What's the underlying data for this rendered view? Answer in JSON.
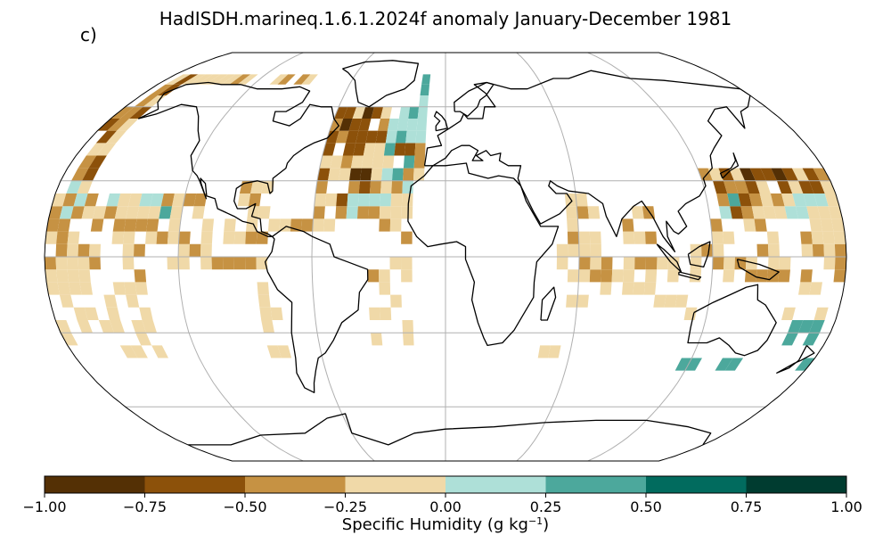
{
  "title": "HadISDH.marineq.1.6.1.2024f anomaly January-December 1981",
  "panel_label": "c)",
  "colorbar": {
    "label": "Specific Humidity (g kg",
    "label_sup": "−1",
    "label_end": ")",
    "ticks": [
      "−1.00",
      "−0.75",
      "−0.50",
      "−0.25",
      "0.00",
      "0.25",
      "0.50",
      "0.75",
      "1.00"
    ],
    "colors": [
      "#543005",
      "#8c510a",
      "#c69243",
      "#f0d9a8",
      "#aee0d8",
      "#4ca89c",
      "#016b5e",
      "#003c30"
    ]
  },
  "chart_data": {
    "type": "heatmap",
    "title": "HadISDH.marineq.1.6.1.2024f anomaly January-December 1981",
    "projection": "Robinson",
    "variable": "Specific Humidity anomaly",
    "units": "g kg-1",
    "color_range": [
      -1.0,
      1.0
    ],
    "bin_edges": [
      -1.0,
      -0.75,
      -0.5,
      -0.25,
      0.0,
      0.25,
      0.5,
      0.75,
      1.0
    ],
    "gridlines": true
  }
}
